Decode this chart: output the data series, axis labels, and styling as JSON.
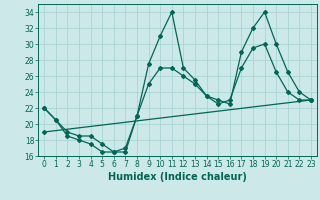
{
  "xlabel": "Humidex (Indice chaleur)",
  "bg_color": "#cde8e8",
  "grid_color": "#aad4d4",
  "line_color": "#006655",
  "xlim": [
    -0.5,
    23.5
  ],
  "ylim": [
    16,
    35
  ],
  "xticks": [
    0,
    1,
    2,
    3,
    4,
    5,
    6,
    7,
    8,
    9,
    10,
    11,
    12,
    13,
    14,
    15,
    16,
    17,
    18,
    19,
    20,
    21,
    22,
    23
  ],
  "yticks": [
    16,
    18,
    20,
    22,
    24,
    26,
    28,
    30,
    32,
    34
  ],
  "line1_x": [
    0,
    1,
    2,
    3,
    4,
    5,
    6,
    7,
    8,
    9,
    10,
    11,
    12,
    13,
    14,
    15,
    16,
    17,
    18,
    19,
    20,
    21,
    22,
    23
  ],
  "line1_y": [
    22,
    20.5,
    18.5,
    18,
    17.5,
    16.5,
    16.5,
    16.5,
    21,
    27.5,
    31,
    34,
    27,
    25.5,
    23.5,
    23,
    22.5,
    29,
    32,
    34,
    30,
    26.5,
    24,
    23
  ],
  "line2_x": [
    0,
    1,
    2,
    3,
    4,
    5,
    6,
    7,
    8,
    9,
    10,
    11,
    12,
    13,
    14,
    15,
    16,
    17,
    18,
    19,
    20,
    21,
    22,
    23
  ],
  "line2_y": [
    22,
    20.5,
    19,
    18.5,
    18.5,
    17.5,
    16.5,
    17,
    21,
    25,
    27,
    27,
    26,
    25,
    23.5,
    22.5,
    23,
    27,
    29.5,
    30,
    26.5,
    24,
    23,
    23
  ],
  "line3_x": [
    0,
    23
  ],
  "line3_y": [
    19,
    23
  ],
  "marker_size": 2.0,
  "linewidth": 0.9,
  "xlabel_fontsize": 7,
  "tick_fontsize": 5.5
}
